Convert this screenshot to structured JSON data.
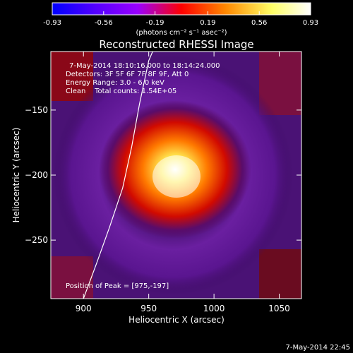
{
  "colorbar": {
    "ticks": [
      "-0.93",
      "-0.56",
      "-0.19",
      "0.19",
      "0.56",
      "0.93"
    ],
    "tick_values": [
      -0.93,
      -0.56,
      -0.19,
      0.19,
      0.56,
      0.93
    ],
    "range": [
      -0.93,
      0.93
    ],
    "unit_label": "(photons cm⁻² s⁻¹ asec⁻²)",
    "stops": [
      "#0000ff",
      "#5500ff",
      "#9900ff",
      "#ff0000",
      "#ff8800",
      "#ffff66",
      "#ffffff"
    ]
  },
  "chart_data": {
    "type": "heatmap",
    "title": "Reconstructed RHESSI Image",
    "xlabel": "Heliocentric X (arcsec)",
    "ylabel": "Heliocentric Y (arcsec)",
    "xlim": [
      875,
      1067
    ],
    "ylim": [
      -295,
      -105
    ],
    "x_ticks": [
      900,
      950,
      1000,
      1050
    ],
    "y_ticks": [
      -150,
      -200,
      -250
    ],
    "x_tick_labels": [
      "900",
      "950",
      "1000",
      "1050"
    ],
    "y_tick_labels": [
      "−150",
      "−200",
      "−250"
    ],
    "peak": [
      975,
      -197
    ],
    "annotations": {
      "time_range": "7-May-2014 18:10:16.000 to 18:14:24.000",
      "detectors": "Detectors: 3F 5F 6F 7F 8F 9F, Att 0",
      "energy": "Energy Range: 3.0 - 6.0 keV",
      "clean": "Clean    Total counts: 1.54E+05",
      "peak_text": "Position of Peak = [975,-197]"
    },
    "limb_curve": [
      [
        900,
        -295
      ],
      [
        910,
        -268
      ],
      [
        920,
        -240
      ],
      [
        930,
        -210
      ],
      [
        937,
        -178
      ],
      [
        943,
        -145
      ],
      [
        950,
        -112
      ],
      [
        953,
        -105
      ]
    ]
  },
  "footer": {
    "timestamp": "7-May-2014 22:45"
  }
}
